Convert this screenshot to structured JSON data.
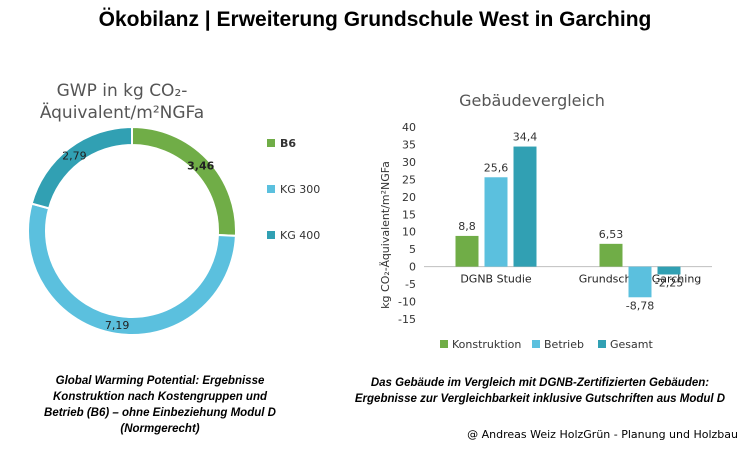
{
  "page": {
    "title": "Ökobilanz | Erweiterung Grundschule West in Garching",
    "credit": "@ Andreas Weiz HolzGrün - Planung und Holzbau"
  },
  "chart_data": [
    {
      "type": "pie",
      "variant": "donut",
      "title": "GWP in kg CO₂-Äquivalent/m²NGFa",
      "title_line1": "GWP in kg CO₂-",
      "title_line2": "Äquivalent/m²NGFa",
      "categories": [
        "B6",
        "KG 300",
        "KG 400"
      ],
      "values": [
        3.46,
        7.19,
        2.79
      ],
      "data_labels": [
        "3,46",
        "7,19",
        "2,79"
      ],
      "colors": [
        "#70ad47",
        "#5bc0de",
        "#31a0b3"
      ],
      "legend_position": "right",
      "caption": "Global Warming Potential: Ergebnisse Konstruktion nach Kostengruppen und Betrieb (B6) – ohne Einbeziehung Modul D (Normgerecht)"
    },
    {
      "type": "bar",
      "title": "Gebäudevergleich",
      "categories": [
        "DGNB Studie",
        "Grundschule Garching"
      ],
      "series": [
        {
          "name": "Konstruktion",
          "values": [
            8.8,
            6.53
          ],
          "labels": [
            "8,8",
            "6,53"
          ],
          "color": "#70ad47"
        },
        {
          "name": "Betrieb",
          "values": [
            25.6,
            -8.78
          ],
          "labels": [
            "25,6",
            "-8,78"
          ],
          "color": "#5bc0de"
        },
        {
          "name": "Gesamt",
          "values": [
            34.4,
            -2.25
          ],
          "labels": [
            "34,4",
            "-2,25"
          ],
          "color": "#31a0b3"
        }
      ],
      "ylabel": "kg CO₂-Äquivalent/m²NGFa",
      "ylim": [
        -15,
        40
      ],
      "yticks": [
        40,
        35,
        30,
        25,
        20,
        15,
        10,
        5,
        0,
        -5,
        -10,
        -15
      ],
      "grid": false,
      "legend_position": "bottom",
      "caption": "Das Gebäude im Vergleich mit DGNB-Zertifizierten Gebäuden: Ergebnisse zur Vergleichbarkeit inklusive Gutschriften aus Modul D"
    }
  ]
}
